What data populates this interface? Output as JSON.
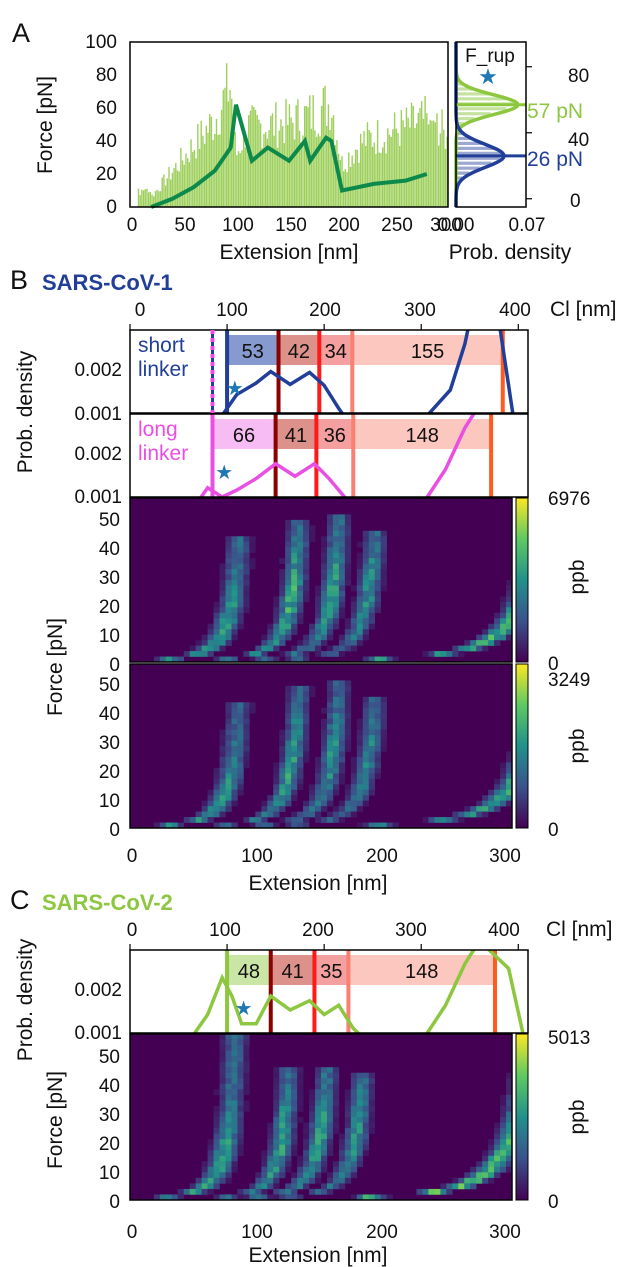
{
  "colors": {
    "cov1": "#213f99",
    "cov2": "#8cc73f",
    "cov2_dark": "#0d8a4b",
    "magenta": "#e94fe2",
    "star": "#1f77b4",
    "dark_red": "#8b0000",
    "red": "#ff1a1a",
    "salmon": "#fa8072",
    "orange": "#ff5a1f"
  },
  "panel_a": {
    "letter": "A",
    "xlabel": "Extension [nm]",
    "ylabel": "Force [pN]",
    "xticks": [
      "0",
      "50",
      "100",
      "150",
      "200",
      "250",
      "300"
    ],
    "yticks": [
      "0",
      "20",
      "40",
      "60",
      "80",
      "100"
    ],
    "hist_title": "F_rup",
    "hist_xlabel": "Prob. density",
    "hist_xticks": [
      "0.00",
      "0.07"
    ],
    "hist_yticks": [
      "0",
      "40",
      "80"
    ],
    "peak_cov2": "57 pN",
    "peak_cov1": "26 pN"
  },
  "panel_b": {
    "letter": "B",
    "virus": "SARS-CoV-1",
    "cl_ticks": [
      "100",
      "200",
      "300",
      "400"
    ],
    "cl_label": "Cl [nm]",
    "short_label_1": "short",
    "short_label_2": "linker",
    "long_label_1": "long",
    "long_label_2": "linker",
    "short_segments": [
      "53",
      "42",
      "34",
      "155"
    ],
    "long_segments": [
      "66",
      "41",
      "36",
      "148"
    ],
    "pd_label": "Prob. density",
    "pd_ticks_top": [
      "0.002",
      "0.001"
    ],
    "pd_ticks_bottom": [
      "0.002",
      "0.001"
    ],
    "force_label": "Force [pN]",
    "force_ticks": [
      "0",
      "10",
      "20",
      "30",
      "40",
      "50"
    ],
    "x_ticks": [
      "0",
      "100",
      "200",
      "300"
    ],
    "xlabel": "Extension [nm]",
    "cb1_max": "6976",
    "cb1_min": "0",
    "cb2_max": "3249",
    "cb2_min": "0",
    "cb_label": "ppb"
  },
  "panel_c": {
    "letter": "C",
    "virus": "SARS-CoV-2",
    "cl_ticks": [
      "0",
      "100",
      "200",
      "300",
      "400"
    ],
    "cl_label": "Cl [nm]",
    "segments": [
      "48",
      "41",
      "35",
      "148"
    ],
    "pd_label": "Prob. density",
    "pd_ticks": [
      "0.002",
      "0.001"
    ],
    "force_label": "Force [pN]",
    "force_ticks": [
      "0",
      "10",
      "20",
      "30",
      "40",
      "50"
    ],
    "x_ticks": [
      "0",
      "100",
      "200",
      "300"
    ],
    "xlabel": "Extension [nm]",
    "cb_max": "5013",
    "cb_min": "0",
    "cb_label": "ppb"
  },
  "chart_data": [
    {
      "type": "line",
      "panel": "A",
      "xlabel": "Extension [nm]",
      "ylabel": "Force [pN]",
      "xlim": [
        0,
        300
      ],
      "ylim": [
        0,
        100
      ],
      "series": [
        {
          "name": "",
          "color": "#8cc73f",
          "x": [
            20,
            40,
            60,
            80,
            95,
            100,
            110,
            130,
            150,
            170,
            190,
            200,
            220,
            250,
            280
          ],
          "y": [
            8,
            28,
            48,
            68,
            96,
            40,
            62,
            64,
            66,
            72,
            82,
            34,
            52,
            60,
            68
          ]
        },
        {
          "name": "",
          "color": "#0d8a4b",
          "x": [
            20,
            40,
            60,
            80,
            95,
            98,
            100,
            115,
            130,
            150,
            165,
            170,
            185,
            190,
            200,
            230,
            260,
            280
          ],
          "y": [
            0,
            5,
            12,
            22,
            36,
            52,
            62,
            28,
            36,
            28,
            40,
            28,
            42,
            40,
            10,
            14,
            16,
            20
          ]
        }
      ],
      "histogram": {
        "title": "F_rup",
        "xlabel": "Prob. density",
        "xlim": [
          0,
          0.07
        ],
        "ylim": [
          -5,
          95
        ],
        "peaks": [
          {
            "label": "57 pN",
            "force": 57
          },
          {
            "label": "26 pN",
            "force": 26
          }
        ]
      }
    },
    {
      "type": "line",
      "panel": "B",
      "title": "SARS-CoV-1",
      "xlabel": "Cl [nm]",
      "ylabel": "Prob. density",
      "xlim": [
        0,
        410
      ],
      "series": [
        {
          "name": "short linker",
          "color": "#213f99",
          "x": [
            0,
            90,
            100,
            110,
            130,
            145,
            165,
            185,
            200,
            215,
            225,
            250,
            300,
            330,
            345,
            350,
            365,
            380,
            395
          ],
          "y": [
            0,
            0.0008,
            0.0011,
            0.0014,
            0.00165,
            0.0019,
            0.00162,
            0.00188,
            0.0016,
            0.0011,
            0.0008,
            0.0005,
            0.0008,
            0.0015,
            0.0025,
            0.003,
            0.003,
            0.003,
            0.0009
          ]
        },
        {
          "name": "long linker",
          "color": "#e94fe2",
          "x": [
            0,
            60,
            80,
            95,
            110,
            130,
            150,
            170,
            190,
            205,
            225,
            260,
            300,
            325,
            345,
            360,
            375
          ],
          "y": [
            0,
            0.0006,
            0.0012,
            0.001,
            0.00115,
            0.0014,
            0.00172,
            0.00145,
            0.00172,
            0.0014,
            0.0009,
            0.0005,
            0.0008,
            0.0016,
            0.0025,
            0.003,
            0.003
          ]
        }
      ],
      "segments_short": [
        53,
        42,
        34,
        155
      ],
      "segments_long": [
        66,
        41,
        36,
        148
      ],
      "heatmaps": [
        {
          "xlabel": "Extension [nm]",
          "ylabel": "Force [pN]",
          "xlim": [
            0,
            300
          ],
          "ylim": [
            0,
            58
          ],
          "cbar_max": 6976,
          "cbar_label": "ppb"
        },
        {
          "xlabel": "Extension [nm]",
          "ylabel": "Force [pN]",
          "xlim": [
            0,
            300
          ],
          "ylim": [
            0,
            58
          ],
          "cbar_max": 3249,
          "cbar_label": "ppb"
        }
      ]
    },
    {
      "type": "line",
      "panel": "C",
      "title": "SARS-CoV-2",
      "xlabel": "Cl [nm]",
      "ylabel": "Prob. density",
      "xlim": [
        0,
        410
      ],
      "series": [
        {
          "name": "",
          "color": "#8cc73f",
          "x": [
            0,
            50,
            80,
            95,
            105,
            115,
            130,
            145,
            165,
            185,
            200,
            215,
            230,
            260,
            300,
            325,
            345,
            360,
            390,
            410
          ],
          "y": [
            0,
            0.0004,
            0.0014,
            0.0022,
            0.0018,
            0.0012,
            0.0012,
            0.0018,
            0.0015,
            0.0017,
            0.0014,
            0.0016,
            0.0011,
            0.0004,
            0.0008,
            0.0016,
            0.0025,
            0.003,
            0.0024,
            0.0005
          ]
        }
      ],
      "segments": [
        48,
        41,
        35,
        148
      ],
      "heatmaps": [
        {
          "xlabel": "Extension [nm]",
          "ylabel": "Force [pN]",
          "xlim": [
            0,
            300
          ],
          "ylim": [
            0,
            58
          ],
          "cbar_max": 5013,
          "cbar_label": "ppb"
        }
      ]
    }
  ]
}
